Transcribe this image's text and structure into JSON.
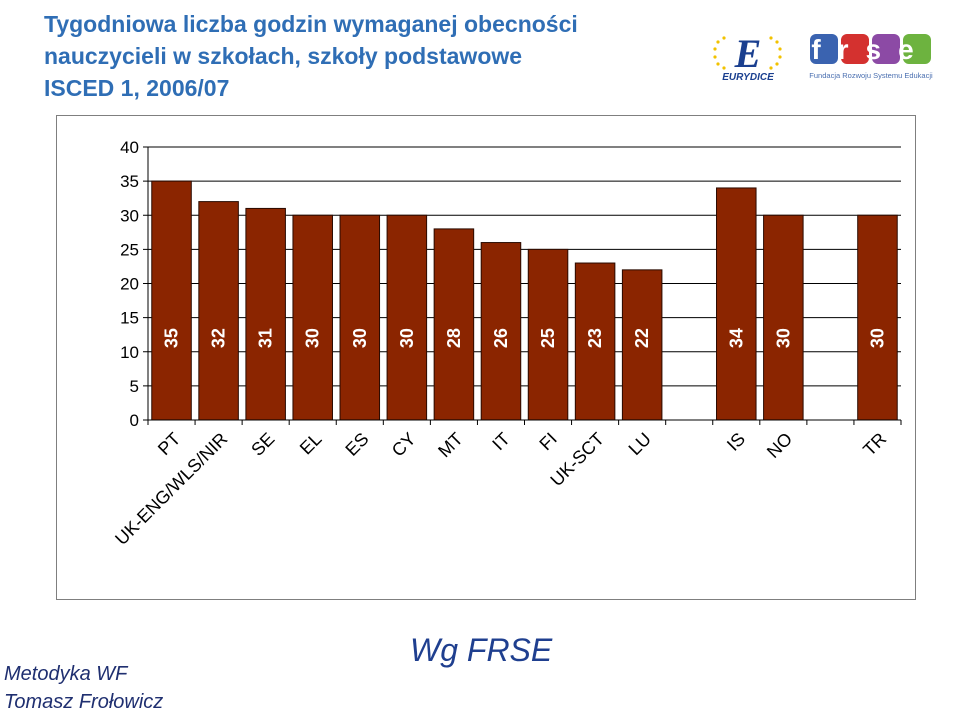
{
  "header": {
    "title_lines": [
      "Tygodniowa liczba godzin wymaganej obecności",
      "nauczycieli w szkołach, szkoły podstawowe",
      "ISCED 1, 2006/07"
    ]
  },
  "logos": {
    "eurydice": {
      "letter": "E",
      "name": "EURYDICE"
    },
    "frse": {
      "name": "frse",
      "subtitle": "Fundacja Rozwoju Systemu Edukacji"
    }
  },
  "chart_data": {
    "type": "bar",
    "categories": [
      "PT",
      "UK-ENG/WLS/NIR",
      "SE",
      "EL",
      "ES",
      "CY",
      "MT",
      "IT",
      "FI",
      "UK-SCT",
      "LU",
      "",
      "IS",
      "NO",
      "",
      "TR"
    ],
    "values": [
      35,
      32,
      31,
      30,
      30,
      30,
      28,
      26,
      25,
      23,
      22,
      null,
      34,
      30,
      null,
      30
    ],
    "value_labels": [
      "35",
      "32",
      "31",
      "30",
      "30",
      "30",
      "28",
      "26",
      "25",
      "23",
      "22",
      "",
      "34",
      "30",
      "",
      "30"
    ],
    "yticks": [
      "0",
      "5",
      "10",
      "15",
      "20",
      "25",
      "30",
      "35",
      "40"
    ],
    "ylim": [
      0,
      40
    ],
    "grid": true,
    "legend": "none",
    "colors": {
      "bar": "#8b2500",
      "bar_border": "#2a0a00",
      "grid": "#000000",
      "label": "#ffffff"
    }
  },
  "footer": {
    "source": "Wg FRSE",
    "author_lines": [
      "Metodyka WF",
      "Tomasz Frołowicz"
    ]
  }
}
